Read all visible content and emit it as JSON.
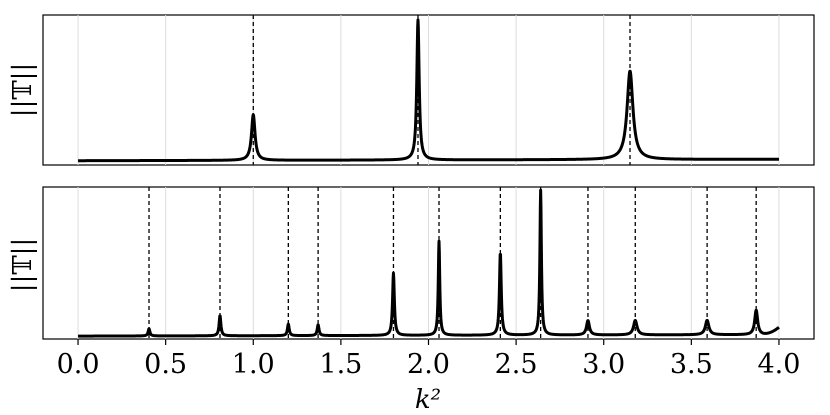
{
  "chart_data": [
    {
      "type": "line",
      "panel": "top",
      "ylabel": "||𝕋||",
      "xlim": [
        -0.2,
        4.2
      ],
      "ylim": [
        0,
        1.05
      ],
      "grid": "vertical",
      "x_range": [
        0.0,
        4.0
      ],
      "baseline": 0.03,
      "drift": 0.01,
      "peaks": [
        {
          "x": 1.0,
          "height": 0.32,
          "width": 0.012,
          "marker": 1.0
        },
        {
          "x": 1.94,
          "height": 0.98,
          "width": 0.008,
          "marker": 1.94
        },
        {
          "x": 3.15,
          "height": 0.62,
          "width": 0.02,
          "marker": 3.15
        }
      ]
    },
    {
      "type": "line",
      "panel": "bottom",
      "ylabel": "||𝕋||",
      "xlabel": "k²",
      "xlim": [
        -0.2,
        4.2
      ],
      "ylim": [
        0,
        1.05
      ],
      "grid": "vertical",
      "x_range": [
        0.0,
        4.0
      ],
      "xticks": [
        "0.0",
        "0.5",
        "1.0",
        "1.5",
        "2.0",
        "2.5",
        "3.0",
        "3.5",
        "4.0"
      ],
      "xtick_values": [
        0.0,
        0.5,
        1.0,
        1.5,
        2.0,
        2.5,
        3.0,
        3.5,
        4.0
      ],
      "baseline": 0.02,
      "drift": 0.01,
      "peaks": [
        {
          "x": 0.405,
          "height": 0.05,
          "width": 0.006,
          "marker": 0.405
        },
        {
          "x": 0.81,
          "height": 0.14,
          "width": 0.006,
          "marker": 0.81
        },
        {
          "x": 1.2,
          "height": 0.08,
          "width": 0.006,
          "marker": 1.2
        },
        {
          "x": 1.37,
          "height": 0.075,
          "width": 0.006,
          "marker": 1.37
        },
        {
          "x": 1.8,
          "height": 0.43,
          "width": 0.006,
          "marker": 1.8
        },
        {
          "x": 2.06,
          "height": 0.65,
          "width": 0.005,
          "marker": 2.06
        },
        {
          "x": 2.41,
          "height": 0.57,
          "width": 0.006,
          "marker": 2.41
        },
        {
          "x": 2.64,
          "height": 1.0,
          "width": 0.005,
          "marker": 2.64
        },
        {
          "x": 2.91,
          "height": 0.1,
          "width": 0.01,
          "marker": 2.91
        },
        {
          "x": 3.18,
          "height": 0.1,
          "width": 0.012,
          "marker": 3.18
        },
        {
          "x": 3.59,
          "height": 0.1,
          "width": 0.012,
          "marker": 3.59
        },
        {
          "x": 3.87,
          "height": 0.17,
          "width": 0.01,
          "marker": 3.87
        }
      ],
      "end_rise": 0.05
    }
  ]
}
